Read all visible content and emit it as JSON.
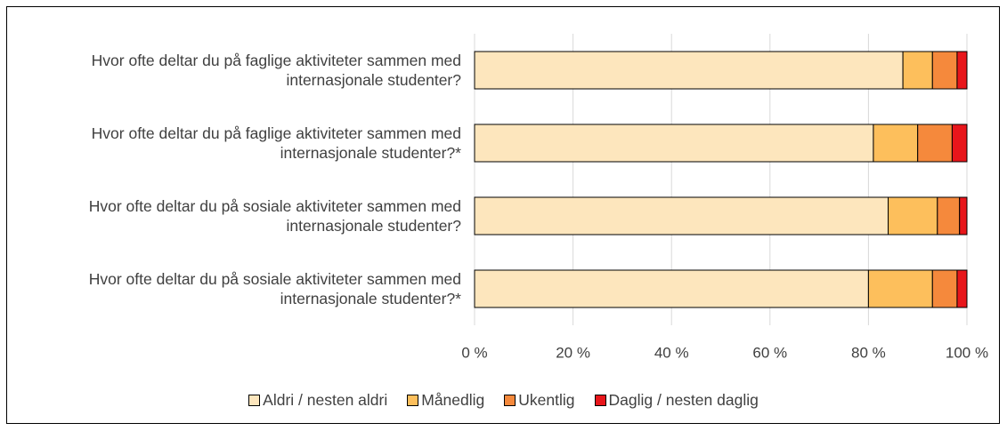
{
  "chart_data": {
    "type": "stacked-barh",
    "categories": [
      "Hvor ofte deltar du på faglige aktiviteter sammen med internasjonale studenter?",
      "Hvor ofte deltar du på faglige aktiviteter sammen med internasjonale studenter?*",
      "Hvor ofte deltar du på sosiale aktiviteter sammen med internasjonale studenter?",
      "Hvor ofte deltar du på sosiale aktiviteter sammen med internasjonale studenter?*"
    ],
    "series": [
      {
        "name": "Aldri / nesten aldri",
        "color": "#fde6bd",
        "values": [
          87,
          81,
          84,
          80
        ]
      },
      {
        "name": "Månedlig",
        "color": "#fdbf5c",
        "values": [
          6,
          9,
          10,
          13
        ]
      },
      {
        "name": "Ukentlig",
        "color": "#f5893c",
        "values": [
          5,
          7,
          4.5,
          5
        ]
      },
      {
        "name": "Daglig / nesten daglig",
        "color": "#e8161b",
        "values": [
          2,
          3,
          1.5,
          2
        ]
      }
    ],
    "xlim": [
      0,
      100
    ],
    "xticks": [
      {
        "value": 0,
        "label": "0 %"
      },
      {
        "value": 20,
        "label": "20 %"
      },
      {
        "value": 40,
        "label": "40 %"
      },
      {
        "value": 60,
        "label": "60 %"
      },
      {
        "value": 80,
        "label": "80 %"
      },
      {
        "value": 100,
        "label": "100 %"
      }
    ],
    "grid": true,
    "legend": "bottom"
  }
}
